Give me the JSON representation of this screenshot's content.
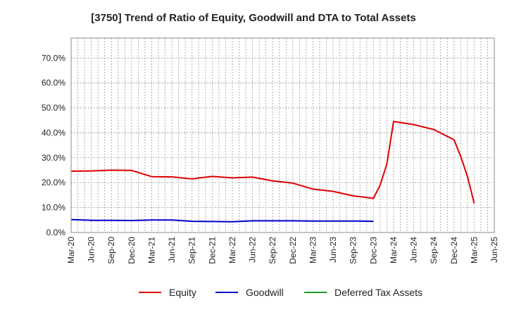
{
  "chart_data": {
    "type": "line",
    "title": "[3750]  Trend of Ratio of Equity, Goodwill and DTA to Total Assets",
    "xlabel": "",
    "ylabel": "",
    "ylim": [
      0,
      0.78
    ],
    "y_ticks": [
      0,
      0.1,
      0.2,
      0.3,
      0.4,
      0.5,
      0.6,
      0.7
    ],
    "y_tick_labels": [
      "0.0%",
      "10.0%",
      "20.0%",
      "30.0%",
      "40.0%",
      "50.0%",
      "60.0%",
      "70.0%"
    ],
    "x_tick_labels": [
      "Mar-20",
      "Jun-20",
      "Sep-20",
      "Dec-20",
      "Mar-21",
      "Jun-21",
      "Sep-21",
      "Dec-21",
      "Mar-22",
      "Jun-22",
      "Sep-22",
      "Dec-22",
      "Mar-23",
      "Jun-23",
      "Sep-23",
      "Dec-23",
      "Mar-24",
      "Jun-24",
      "Sep-24",
      "Dec-24",
      "Mar-25",
      "Jun-25"
    ],
    "grid": true,
    "legend_position": "bottom",
    "series": [
      {
        "name": "Equity",
        "color": "#dd0000",
        "points": [
          [
            "Mar-20",
            0.246
          ],
          [
            "Jun-20",
            0.247
          ],
          [
            "Sep-20",
            0.25
          ],
          [
            "Dec-20",
            0.249
          ],
          [
            "Mar-21",
            0.224
          ],
          [
            "Jun-21",
            0.223
          ],
          [
            "Sep-21",
            0.215
          ],
          [
            "Dec-21",
            0.225
          ],
          [
            "Mar-22",
            0.219
          ],
          [
            "Jun-22",
            0.222
          ],
          [
            "Sep-22",
            0.207
          ],
          [
            "Dec-22",
            0.198
          ],
          [
            "Mar-23",
            0.174
          ],
          [
            "Jun-23",
            0.165
          ],
          [
            "Sep-23",
            0.147
          ],
          [
            "Dec-23",
            0.137
          ],
          [
            "Jan-24",
            0.19
          ],
          [
            "Feb-24",
            0.275
          ],
          [
            "Mar-24",
            0.445
          ],
          [
            "Jun-24",
            0.433
          ],
          [
            "Sep-24",
            0.413
          ],
          [
            "Dec-24",
            0.372
          ],
          [
            "Jan-25",
            0.305
          ],
          [
            "Feb-25",
            0.225
          ],
          [
            "Mar-25",
            0.117
          ]
        ]
      },
      {
        "name": "Goodwill",
        "color": "#0000cc",
        "points": [
          [
            "Mar-20",
            0.052
          ],
          [
            "Jun-20",
            0.049
          ],
          [
            "Sep-20",
            0.049
          ],
          [
            "Dec-20",
            0.048
          ],
          [
            "Mar-21",
            0.05
          ],
          [
            "Jun-21",
            0.05
          ],
          [
            "Sep-21",
            0.045
          ],
          [
            "Dec-21",
            0.044
          ],
          [
            "Mar-22",
            0.043
          ],
          [
            "Jun-22",
            0.047
          ],
          [
            "Sep-22",
            0.047
          ],
          [
            "Dec-22",
            0.047
          ],
          [
            "Mar-23",
            0.046
          ],
          [
            "Jun-23",
            0.046
          ],
          [
            "Sep-23",
            0.046
          ],
          [
            "Dec-23",
            0.045
          ]
        ]
      },
      {
        "name": "Deferred Tax Assets",
        "color": "#229922",
        "points": []
      }
    ]
  }
}
